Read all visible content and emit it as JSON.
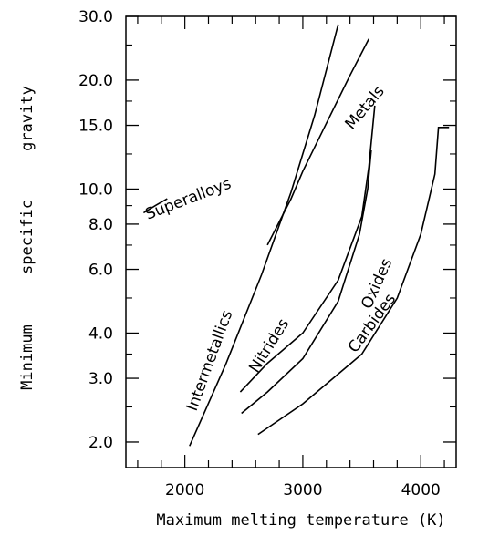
{
  "chart_data": {
    "type": "line",
    "title": "",
    "xlabel": "Maximum melting temperature (K)",
    "ylabel": "Minimum specific gravity",
    "ylabel_words": [
      "Minimum",
      "specific",
      "gravity"
    ],
    "xlim": [
      1500,
      4300
    ],
    "ylim": [
      1.7,
      30
    ],
    "yscale": "log",
    "grid": false,
    "legend": "none",
    "x_ticks": [
      "2000",
      "3000",
      "4000"
    ],
    "x_tick_values": [
      2000,
      3000,
      4000
    ],
    "y_ticks": [
      "2.0",
      "3.0",
      "4.0",
      "6.0",
      "8.0",
      "10.0",
      "15.0",
      "20.0",
      "30.0"
    ],
    "y_tick_values": [
      2,
      3,
      4,
      6,
      8,
      10,
      15,
      20,
      30
    ],
    "series": [
      {
        "name": "Superalloys",
        "x": [
          1650,
          1750,
          1850
        ],
        "y": [
          8.6,
          9.0,
          9.4
        ]
      },
      {
        "name": "Metals",
        "x": [
          2700,
          2900,
          3000,
          3200,
          3400,
          3560
        ],
        "y": [
          7.0,
          9.4,
          11.2,
          15.2,
          20.6,
          26.0
        ]
      },
      {
        "name": "Intermetallics",
        "x": [
          2040,
          2350,
          2650,
          2900,
          3100,
          3300
        ],
        "y": [
          1.95,
          3.3,
          5.8,
          9.8,
          16.0,
          28.5
        ]
      },
      {
        "name": "Nitrides",
        "x": [
          2470,
          2700,
          3000,
          3300,
          3500,
          3560,
          3610
        ],
        "y": [
          2.75,
          3.3,
          4.0,
          5.6,
          8.4,
          11.5,
          17.0
        ]
      },
      {
        "name": "Oxides",
        "x": [
          2480,
          2700,
          3000,
          3300,
          3480,
          3550,
          3580
        ],
        "y": [
          2.4,
          2.75,
          3.4,
          4.9,
          7.5,
          10.0,
          12.8
        ]
      },
      {
        "name": "Carbides",
        "x": [
          2620,
          3000,
          3500,
          3800,
          4000,
          4120,
          4150,
          4240
        ],
        "y": [
          2.1,
          2.55,
          3.5,
          5.0,
          7.5,
          11.0,
          14.8,
          14.8
        ]
      }
    ]
  }
}
